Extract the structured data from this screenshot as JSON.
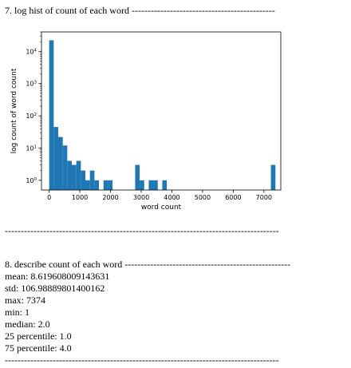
{
  "section7": {
    "heading": "7. log hist of count of each word ---------------------------------------------"
  },
  "separator1": "--------------------------------------------------------------------------------------",
  "section8": {
    "heading": "8. describe count of each word ----------------------------------------------------",
    "stats": [
      "mean: 8.619608009143631",
      "std: 106.98889801400162",
      "max: 7374",
      "min: 1",
      "median: 2.0",
      "25 percentile: 1.0",
      "75 percentile: 4.0"
    ]
  },
  "separator2": "--------------------------------------------------------------------------------------",
  "chart_data": {
    "type": "bar",
    "xlabel": "word count",
    "ylabel": "log count of word count",
    "xlim": [
      -250,
      7550
    ],
    "xticks": [
      0,
      1000,
      2000,
      3000,
      4000,
      5000,
      6000,
      7000
    ],
    "yscale": "log",
    "ylim": [
      0.5,
      40000
    ],
    "yticks": [
      {
        "value": 1,
        "base": "10",
        "exp": "0"
      },
      {
        "value": 10,
        "base": "10",
        "exp": "1"
      },
      {
        "value": 100,
        "base": "10",
        "exp": "2"
      },
      {
        "value": 1000,
        "base": "10",
        "exp": "3"
      },
      {
        "value": 10000,
        "base": "10",
        "exp": "4"
      }
    ],
    "bin_width": 147.46,
    "bin_start": 1,
    "bins": [
      {
        "x0": 1,
        "count": 22000
      },
      {
        "x0": 148.46,
        "count": 45
      },
      {
        "x0": 295.92,
        "count": 22
      },
      {
        "x0": 443.38,
        "count": 12
      },
      {
        "x0": 590.84,
        "count": 4
      },
      {
        "x0": 738.3,
        "count": 3
      },
      {
        "x0": 885.76,
        "count": 4
      },
      {
        "x0": 1033.22,
        "count": 2
      },
      {
        "x0": 1180.68,
        "count": 1
      },
      {
        "x0": 1328.14,
        "count": 2
      },
      {
        "x0": 1475.6,
        "count": 1
      },
      {
        "x0": 1770.52,
        "count": 1
      },
      {
        "x0": 1917.98,
        "count": 1
      },
      {
        "x0": 2802.74,
        "count": 3
      },
      {
        "x0": 2950.2,
        "count": 1
      },
      {
        "x0": 3245.12,
        "count": 1
      },
      {
        "x0": 3392.58,
        "count": 1
      },
      {
        "x0": 3687.5,
        "count": 1
      },
      {
        "x0": 7227.0,
        "count": 3
      }
    ],
    "bar_color": "#1f77b4"
  }
}
